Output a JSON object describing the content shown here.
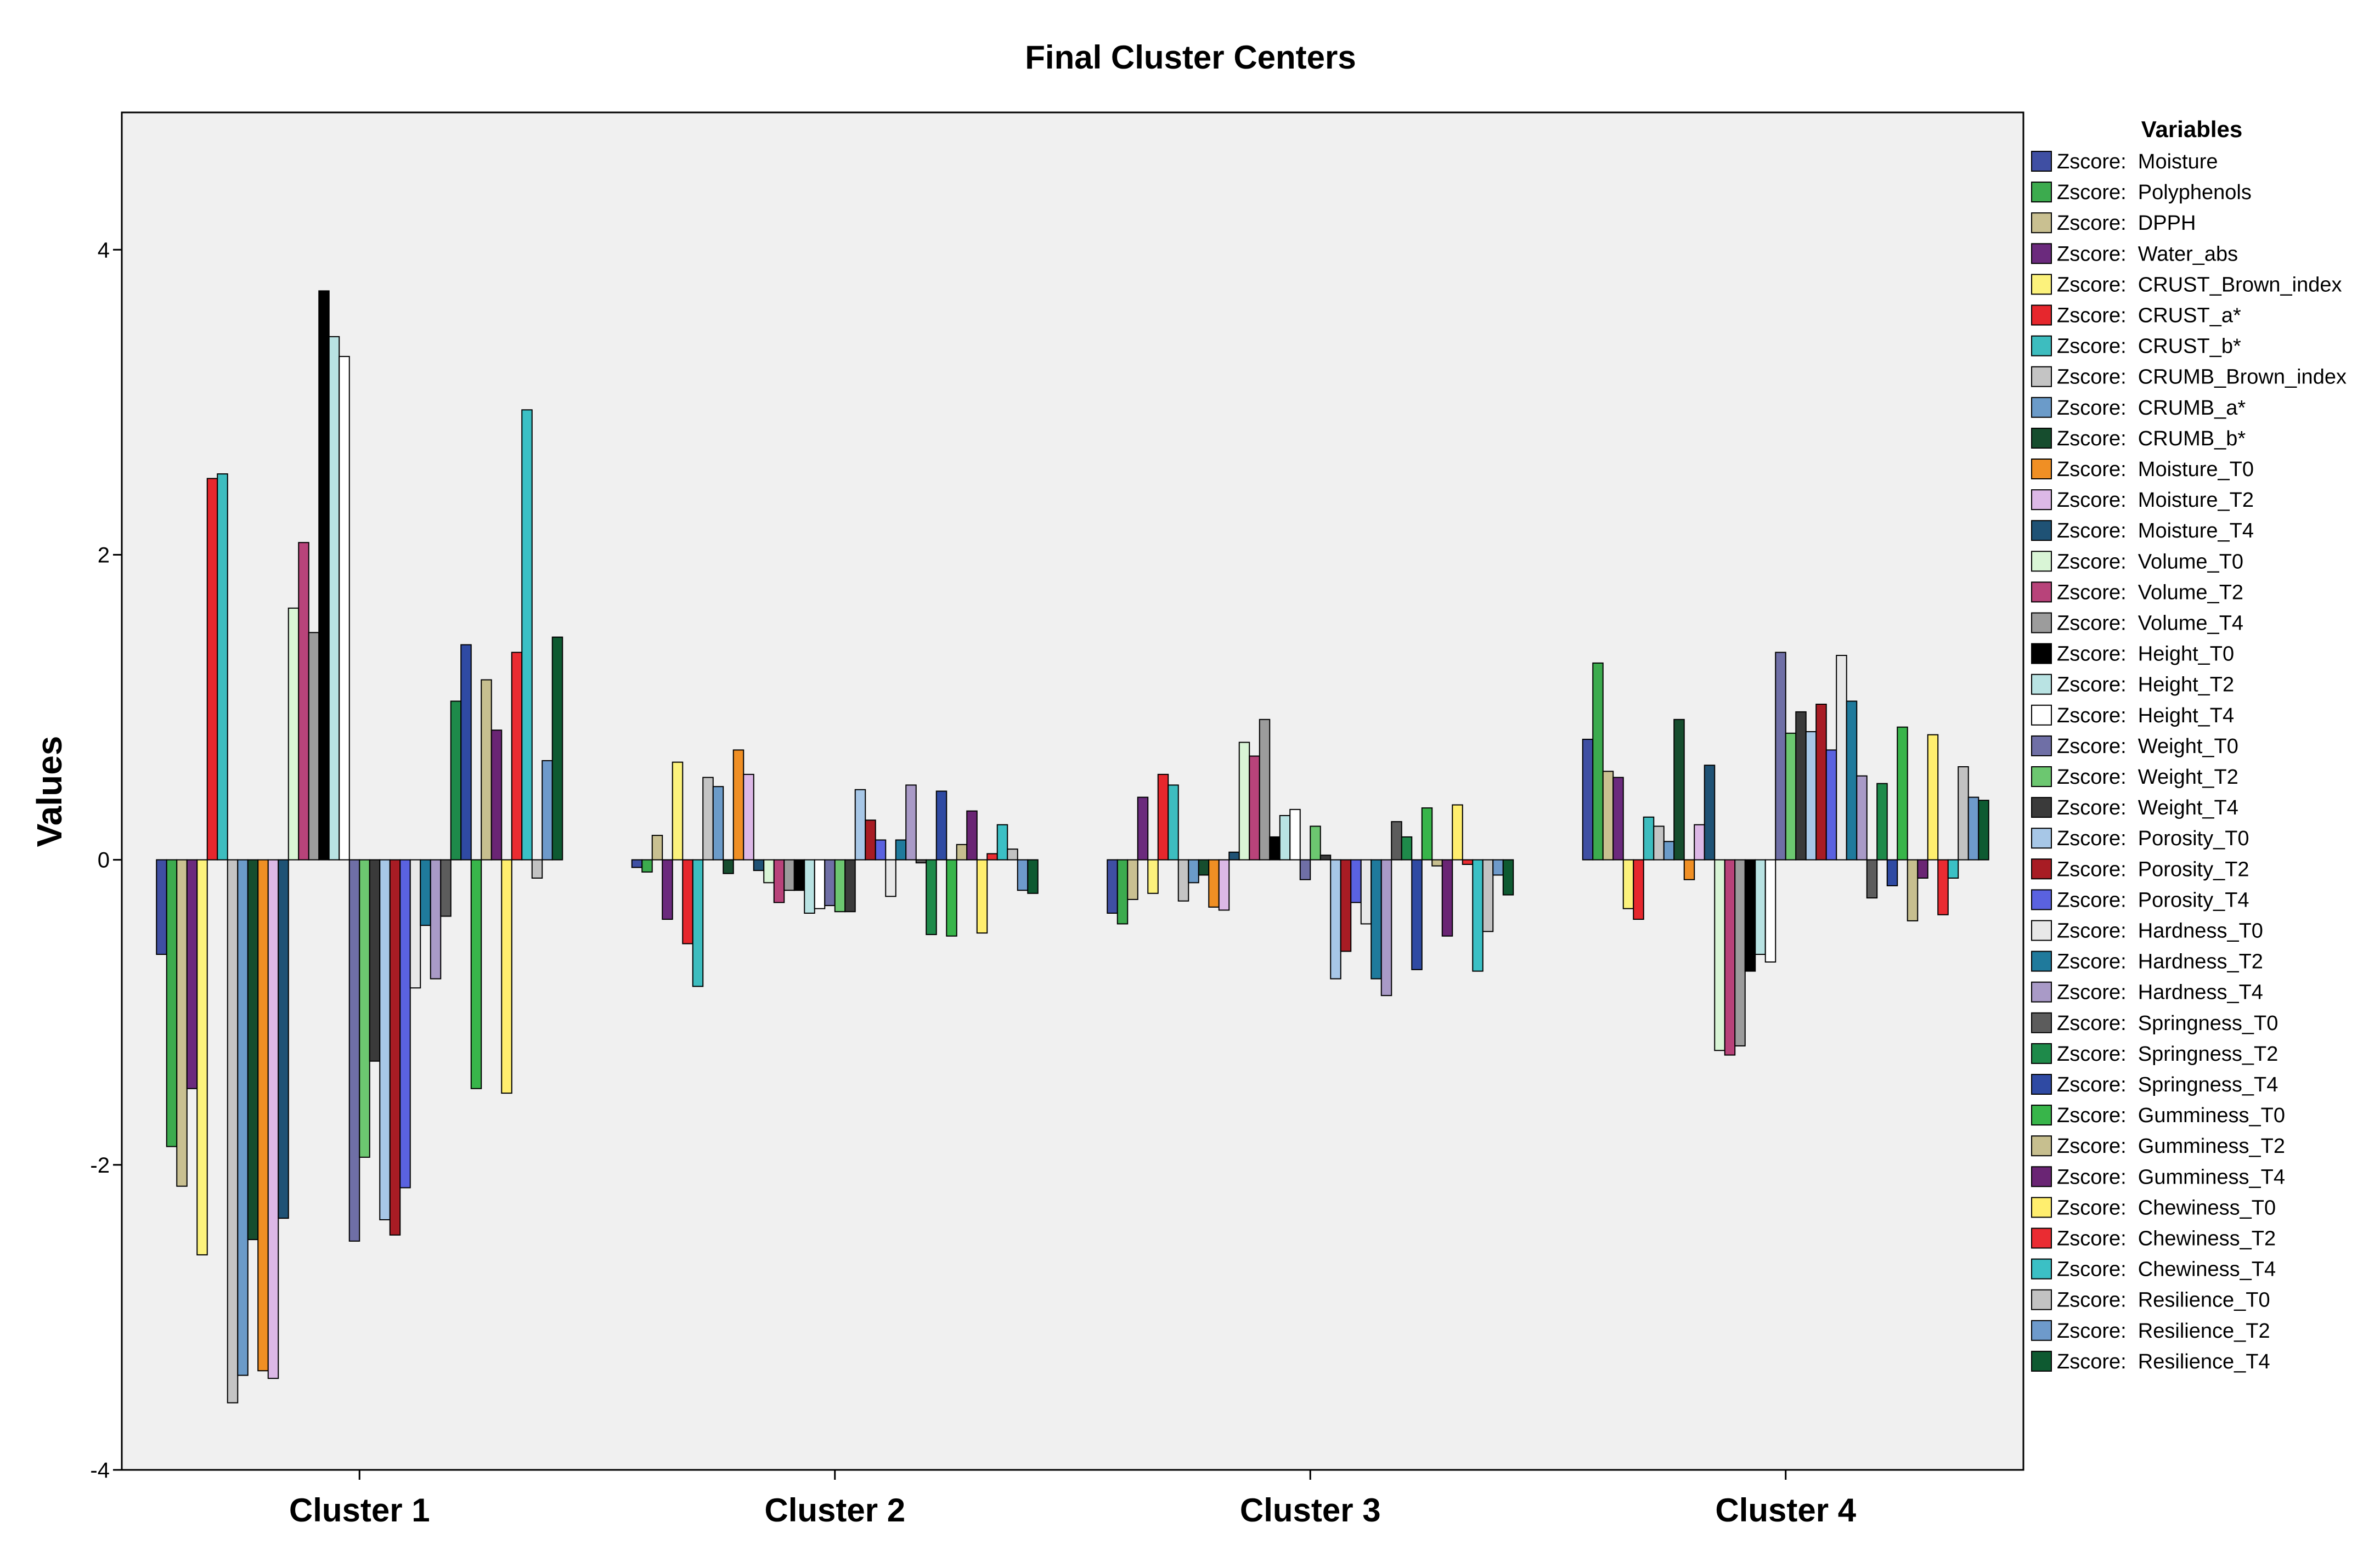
{
  "chart_data": {
    "type": "bar",
    "title": "Final Cluster Centers",
    "xlabel": "",
    "ylabel": "Values",
    "ylim": [
      -4,
      4.9
    ],
    "yticks": [
      -4,
      -2,
      0,
      2,
      4
    ],
    "grid": false,
    "legend_title": "Variables",
    "legend_position": "right",
    "categories": [
      "Cluster 1",
      "Cluster 2",
      "Cluster 3",
      "Cluster 4"
    ],
    "series": [
      {
        "name": "Zscore:  Moisture",
        "color": "#3f4fa3",
        "values": [
          -0.62,
          -0.05,
          -0.35,
          0.79
        ]
      },
      {
        "name": "Zscore:  Polyphenols",
        "color": "#3cab4e",
        "values": [
          -1.88,
          -0.08,
          -0.42,
          1.29
        ]
      },
      {
        "name": "Zscore:  DPPH",
        "color": "#c9c091",
        "values": [
          -2.14,
          0.16,
          -0.26,
          0.58
        ]
      },
      {
        "name": "Zscore:  Water_abs",
        "color": "#6b2a7d",
        "values": [
          -1.5,
          -0.39,
          0.41,
          0.54
        ]
      },
      {
        "name": "Zscore:  CRUST_Brown_index",
        "color": "#fcf27c",
        "values": [
          -2.59,
          0.64,
          -0.22,
          -0.32
        ]
      },
      {
        "name": "Zscore:  CRUST_a*",
        "color": "#e6272d",
        "values": [
          2.5,
          -0.55,
          0.56,
          -0.39
        ]
      },
      {
        "name": "Zscore:  CRUST_b*",
        "color": "#3dbdbf",
        "values": [
          2.53,
          -0.83,
          0.49,
          0.28
        ]
      },
      {
        "name": "Zscore:  CRUMB_Brown_index",
        "color": "#c4c4c4",
        "values": [
          -3.56,
          0.54,
          -0.27,
          0.22
        ]
      },
      {
        "name": "Zscore:  CRUMB_a*",
        "color": "#6b9bc9",
        "values": [
          -3.38,
          0.48,
          -0.15,
          0.12
        ]
      },
      {
        "name": "Zscore:  CRUMB_b*",
        "color": "#164d2e",
        "values": [
          -2.49,
          -0.09,
          -0.1,
          0.92
        ]
      },
      {
        "name": "Zscore:  Moisture_T0",
        "color": "#f08f24",
        "values": [
          -3.35,
          0.72,
          -0.31,
          -0.13
        ]
      },
      {
        "name": "Zscore:  Moisture_T2",
        "color": "#dcb8e6",
        "values": [
          -3.4,
          0.56,
          -0.33,
          0.23
        ]
      },
      {
        "name": "Zscore:  Moisture_T4",
        "color": "#1f5275",
        "values": [
          -2.35,
          -0.07,
          0.05,
          0.62
        ]
      },
      {
        "name": "Zscore:  Volume_T0",
        "color": "#d9f5d6",
        "values": [
          1.65,
          -0.15,
          0.77,
          -1.25
        ]
      },
      {
        "name": "Zscore:  Volume_T2",
        "color": "#b8437a",
        "values": [
          2.08,
          -0.28,
          0.68,
          -1.28
        ]
      },
      {
        "name": "Zscore:  Volume_T4",
        "color": "#9c9c9c",
        "values": [
          1.49,
          -0.2,
          0.92,
          -1.22
        ]
      },
      {
        "name": "Zscore:  Height_T0",
        "color": "#000000",
        "values": [
          3.73,
          -0.2,
          0.15,
          -0.73
        ]
      },
      {
        "name": "Zscore:  Height_T2",
        "color": "#b9e3e3",
        "values": [
          3.43,
          -0.35,
          0.29,
          -0.62
        ]
      },
      {
        "name": "Zscore:  Height_T4",
        "color": "#ffffff",
        "values": [
          3.3,
          -0.32,
          0.33,
          -0.67
        ]
      },
      {
        "name": "Zscore:  Weight_T0",
        "color": "#6f6fa6",
        "values": [
          -2.5,
          -0.3,
          -0.13,
          1.36
        ]
      },
      {
        "name": "Zscore:  Weight_T2",
        "color": "#6cc770",
        "values": [
          -1.95,
          -0.34,
          0.22,
          0.83
        ]
      },
      {
        "name": "Zscore:  Weight_T4",
        "color": "#3a3a3a",
        "values": [
          -1.32,
          -0.34,
          0.03,
          0.97
        ]
      },
      {
        "name": "Zscore:  Porosity_T0",
        "color": "#a7c7e7",
        "values": [
          -2.36,
          0.46,
          -0.78,
          0.84
        ]
      },
      {
        "name": "Zscore:  Porosity_T2",
        "color": "#a81c24",
        "values": [
          -2.46,
          0.26,
          -0.6,
          1.02
        ]
      },
      {
        "name": "Zscore:  Porosity_T4",
        "color": "#5a62e0",
        "values": [
          -2.15,
          0.13,
          -0.28,
          0.72
        ]
      },
      {
        "name": "Zscore:  Hardness_T0",
        "color": "#e8e8e8",
        "values": [
          -0.84,
          -0.24,
          -0.42,
          1.34
        ]
      },
      {
        "name": "Zscore:  Hardness_T2",
        "color": "#1f7a9c",
        "values": [
          -0.43,
          0.13,
          -0.78,
          1.04
        ]
      },
      {
        "name": "Zscore:  Hardness_T4",
        "color": "#a99ac7",
        "values": [
          -0.78,
          0.49,
          -0.89,
          0.55
        ]
      },
      {
        "name": "Zscore:  Springness_T0",
        "color": "#5c5c5c",
        "values": [
          -0.37,
          -0.02,
          0.25,
          -0.25
        ]
      },
      {
        "name": "Zscore:  Springness_T2",
        "color": "#1e8a4a",
        "values": [
          1.04,
          -0.49,
          0.15,
          0.5
        ]
      },
      {
        "name": "Zscore:  Springness_T4",
        "color": "#2f4aa3",
        "values": [
          1.41,
          0.45,
          -0.72,
          -0.17
        ]
      },
      {
        "name": "Zscore:  Gumminess_T0",
        "color": "#38b54a",
        "values": [
          -1.5,
          -0.5,
          0.34,
          0.87
        ]
      },
      {
        "name": "Zscore:  Gumminess_T2",
        "color": "#c7bf8f",
        "values": [
          1.18,
          0.1,
          -0.04,
          -0.4
        ]
      },
      {
        "name": "Zscore:  Gumminess_T4",
        "color": "#6a2574",
        "values": [
          0.85,
          0.32,
          -0.5,
          -0.12
        ]
      },
      {
        "name": "Zscore:  Chewiness_T0",
        "color": "#ffee6e",
        "values": [
          -1.53,
          -0.48,
          0.36,
          0.82
        ]
      },
      {
        "name": "Zscore:  Chewiness_T2",
        "color": "#ea2c32",
        "values": [
          1.36,
          0.04,
          -0.03,
          -0.36
        ]
      },
      {
        "name": "Zscore:  Chewiness_T4",
        "color": "#3bc0c5",
        "values": [
          2.95,
          0.23,
          -0.73,
          -0.12
        ]
      },
      {
        "name": "Zscore:  Resilience_T0",
        "color": "#c2c2c2",
        "values": [
          -0.12,
          0.07,
          -0.47,
          0.61
        ]
      },
      {
        "name": "Zscore:  Resilience_T2",
        "color": "#6e9acb",
        "values": [
          0.65,
          -0.2,
          -0.1,
          0.41
        ]
      },
      {
        "name": "Zscore:  Resilience_T4",
        "color": "#0e5a31",
        "values": [
          1.46,
          -0.22,
          -0.23,
          0.39
        ]
      }
    ]
  }
}
